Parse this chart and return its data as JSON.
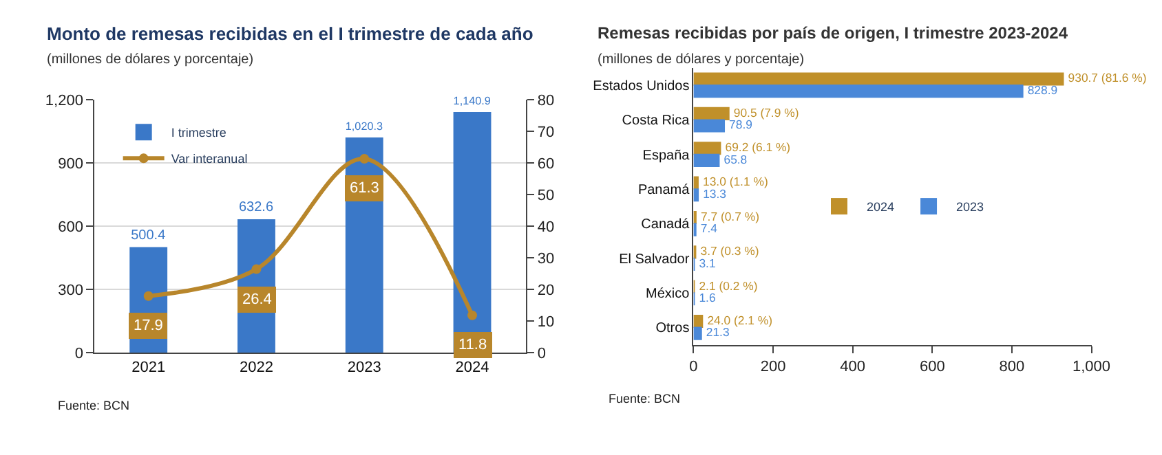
{
  "chart_data": [
    {
      "type": "bar",
      "title": "Monto de remesas recibidas en el I trimestre de cada año",
      "subtitle": "(millones de dólares y porcentaje)",
      "categories": [
        "2021",
        "2022",
        "2023",
        "2024"
      ],
      "series": [
        {
          "name": "I trimestre",
          "color": "#3a78c8",
          "values": [
            500.4,
            632.6,
            1020.3,
            1140.9
          ],
          "value_labels": [
            "500.4",
            "632.6",
            "1,020.3",
            "1,140.9"
          ]
        },
        {
          "name": "Var interanual",
          "type": "line",
          "axis": "y2",
          "color": "#b8862b",
          "values": [
            17.9,
            26.4,
            61.3,
            11.8
          ],
          "value_labels": [
            "17.9",
            "26.4",
            "61.3",
            "11.8"
          ]
        }
      ],
      "ylim": [
        0,
        1200
      ],
      "yticks": [
        0,
        300,
        600,
        900,
        {
          "value": 1200,
          "label": "1,200"
        }
      ],
      "y2lim": [
        0,
        80
      ],
      "y2ticks": [
        0,
        10,
        20,
        30,
        40,
        50,
        60,
        70,
        80
      ],
      "grid": "y",
      "legend": "top left",
      "marker": "circle",
      "annotations": [
        "Fuente: BCN"
      ]
    },
    {
      "type": "bar",
      "orientation": "horizontal",
      "title": "Remesas recibidas por país de origen, I trimestre 2023-2024",
      "subtitle": "(millones de dólares y porcentaje)",
      "categories": [
        "Estados Unidos",
        "Costa Rica",
        "España",
        "Panamá",
        "Canadá",
        "El Salvador",
        "México",
        "Otros"
      ],
      "series": [
        {
          "name": "2024",
          "color": "#c0902a",
          "values": [
            930.7,
            90.5,
            69.2,
            13.0,
            7.7,
            3.7,
            2.1,
            24.0
          ],
          "value_labels": [
            "930.7 (81.6 %)",
            "90.5 (7.9 %)",
            "69.2 (6.1 %)",
            "13.0 (1.1 %)",
            "7.7 (0.7 %)",
            "3.7 (0.3 %)",
            "2.1 (0.2 %)",
            "24.0 (2.1 %)"
          ]
        },
        {
          "name": "2023",
          "color": "#4a88d8",
          "values": [
            828.9,
            78.9,
            65.8,
            13.3,
            7.4,
            3.1,
            1.6,
            21.3
          ],
          "value_labels": [
            "828.9",
            "78.9",
            "65.8",
            "13.3",
            "7.4",
            "3.1",
            "1.6",
            "21.3"
          ]
        }
      ],
      "xlim": [
        0,
        1000
      ],
      "xticks": [
        0,
        200,
        400,
        600,
        800,
        {
          "value": 1000,
          "label": "1,000"
        }
      ],
      "legend": "right",
      "annotations": [
        "Fuente: BCN"
      ]
    }
  ]
}
